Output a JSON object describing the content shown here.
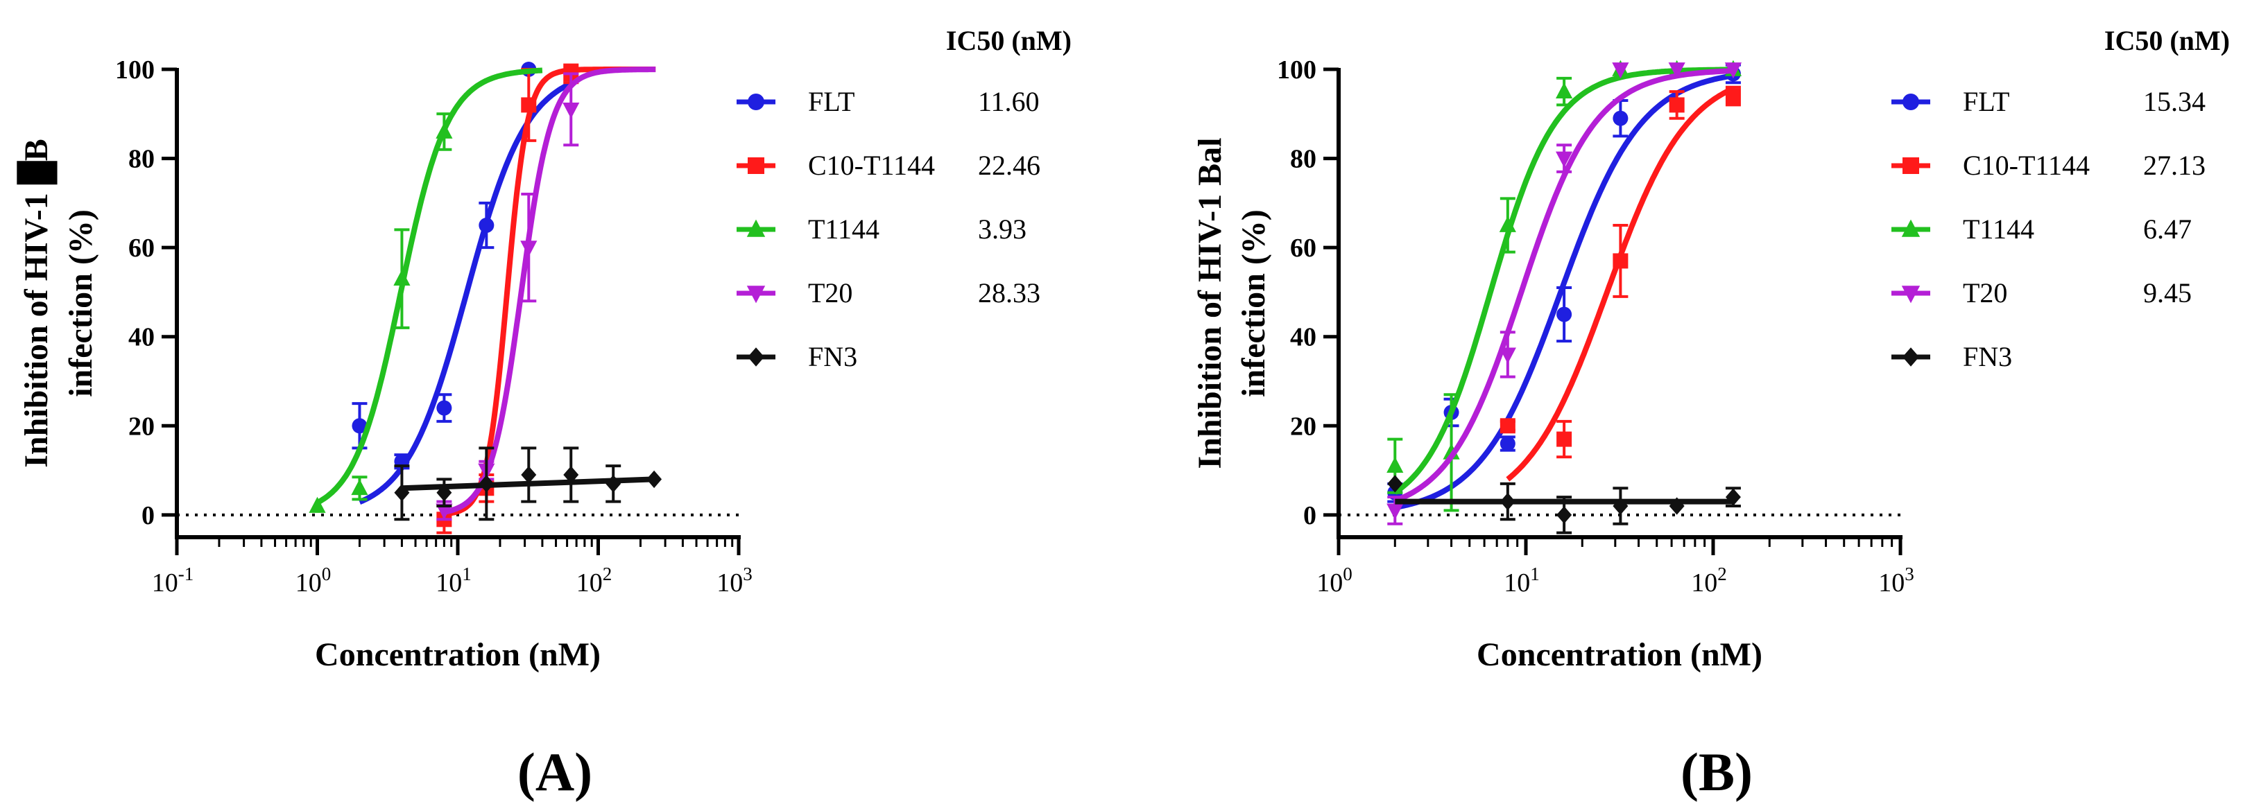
{
  "chart_data": [
    {
      "type": "scatter",
      "panel_label": "(A)",
      "xlabel": "Concentration (nM)",
      "ylabel_line1": "Inhibition of HIV-1 █B",
      "ylabel_line2": "infection (%)",
      "x_scale": "log",
      "xlim_exp": [
        -1,
        3
      ],
      "x_tick_labels": [
        {
          "base": "10",
          "exp": "-1"
        },
        {
          "base": "10",
          "exp": "0"
        },
        {
          "base": "10",
          "exp": "1"
        },
        {
          "base": "10",
          "exp": "2"
        },
        {
          "base": "10",
          "exp": "3"
        }
      ],
      "ylim": [
        -5,
        100
      ],
      "y_ticks": [
        0,
        20,
        40,
        60,
        80,
        100
      ],
      "y_tick_labels": [
        "0",
        "20",
        "40",
        "60",
        "80",
        "100"
      ],
      "legend_title": "IC50 (nM)",
      "series": [
        {
          "name": "FLT",
          "ic50_label": "11.60",
          "ic50": 11.6,
          "color": "#1f1fe0",
          "marker": "circle",
          "hill": 2.0,
          "fit_range": [
            2,
            64
          ],
          "points": [
            {
              "x": 2,
              "y": 20,
              "err": 5
            },
            {
              "x": 4,
              "y": 12,
              "err": 1.5
            },
            {
              "x": 8,
              "y": 24,
              "err": 3
            },
            {
              "x": 16,
              "y": 65,
              "err": 5
            },
            {
              "x": 32,
              "y": 100,
              "err": 0
            }
          ]
        },
        {
          "name": "C10-T1144",
          "ic50_label": "22.46",
          "ic50": 22.46,
          "color": "#ff1a1a",
          "marker": "square",
          "hill": 6.0,
          "fit_range": [
            8,
            256
          ],
          "points": [
            {
              "x": 8,
              "y": -1,
              "err": 3
            },
            {
              "x": 16,
              "y": 6,
              "err": 3
            },
            {
              "x": 32,
              "y": 92,
              "err": 8
            },
            {
              "x": 64,
              "y": 99,
              "err": 2
            }
          ]
        },
        {
          "name": "T1144",
          "ic50_label": "3.93",
          "ic50": 3.93,
          "color": "#22c01f",
          "marker": "triangle-up",
          "hill": 2.6,
          "fit_range": [
            1,
            40
          ],
          "points": [
            {
              "x": 1,
              "y": 2,
              "err": 0
            },
            {
              "x": 2,
              "y": 6,
              "err": 2.5
            },
            {
              "x": 4,
              "y": 53,
              "err": 11
            },
            {
              "x": 8,
              "y": 86,
              "err": 4
            }
          ]
        },
        {
          "name": "T20",
          "ic50_label": "28.33",
          "ic50": 28.33,
          "color": "#b41fd6",
          "marker": "triangle-down",
          "hill": 4.0,
          "fit_range": [
            8,
            256
          ],
          "points": [
            {
              "x": 8,
              "y": 1,
              "err": 2
            },
            {
              "x": 16,
              "y": 10,
              "err": 2
            },
            {
              "x": 32,
              "y": 60,
              "err": 12
            },
            {
              "x": 64,
              "y": 91,
              "err": 8
            }
          ]
        },
        {
          "name": "FN3",
          "ic50_label": "",
          "color": "#111111",
          "marker": "diamond",
          "line": "linear",
          "fit_range": [
            4,
            250
          ],
          "fit_y": [
            6,
            8
          ],
          "points": [
            {
              "x": 4,
              "y": 5,
              "err": 6
            },
            {
              "x": 8,
              "y": 5,
              "err": 3
            },
            {
              "x": 16,
              "y": 7,
              "err": 8
            },
            {
              "x": 32,
              "y": 9,
              "err": 6
            },
            {
              "x": 64,
              "y": 9,
              "err": 6
            },
            {
              "x": 128,
              "y": 7,
              "err": 4
            },
            {
              "x": 250,
              "y": 8,
              "err": 0
            }
          ]
        }
      ]
    },
    {
      "type": "scatter",
      "panel_label": "(B)",
      "xlabel": "Concentration (nM)",
      "ylabel_line1": "Inhibition of HIV-1 Bal",
      "ylabel_line2": "infection (%)",
      "x_scale": "log",
      "xlim_exp": [
        0,
        3
      ],
      "x_tick_labels": [
        {
          "base": "10",
          "exp": "0"
        },
        {
          "base": "10",
          "exp": "1"
        },
        {
          "base": "10",
          "exp": "2"
        },
        {
          "base": "10",
          "exp": "3"
        }
      ],
      "ylim": [
        -5,
        100
      ],
      "y_ticks": [
        0,
        20,
        40,
        60,
        80,
        100
      ],
      "y_tick_labels": [
        "0",
        "20",
        "40",
        "60",
        "80",
        "100"
      ],
      "legend_title": "IC50 (nM)",
      "series": [
        {
          "name": "FLT",
          "ic50_label": "15.34",
          "ic50": 15.34,
          "color": "#1f1fe0",
          "marker": "circle",
          "hill": 2.0,
          "fit_range": [
            2,
            128
          ],
          "points": [
            {
              "x": 2,
              "y": 5,
              "err": 2
            },
            {
              "x": 4,
              "y": 23,
              "err": 3
            },
            {
              "x": 8,
              "y": 16,
              "err": 1.5
            },
            {
              "x": 16,
              "y": 45,
              "err": 6
            },
            {
              "x": 32,
              "y": 89,
              "err": 4
            },
            {
              "x": 128,
              "y": 99,
              "err": 2
            }
          ]
        },
        {
          "name": "C10-T1144",
          "ic50_label": "27.13",
          "ic50": 27.13,
          "color": "#ff1a1a",
          "marker": "square",
          "hill": 2.0,
          "fit_range": [
            8,
            128
          ],
          "points": [
            {
              "x": 8,
              "y": 20,
              "err": 1
            },
            {
              "x": 16,
              "y": 17,
              "err": 4
            },
            {
              "x": 32,
              "y": 57,
              "err": 8
            },
            {
              "x": 64,
              "y": 92,
              "err": 3
            },
            {
              "x": 128,
              "y": 94,
              "err": 2
            }
          ]
        },
        {
          "name": "T1144",
          "ic50_label": "6.47",
          "ic50": 6.47,
          "color": "#22c01f",
          "marker": "triangle-up",
          "hill": 2.5,
          "fit_range": [
            2,
            128
          ],
          "points": [
            {
              "x": 2,
              "y": 11,
              "err": 6
            },
            {
              "x": 4,
              "y": 14,
              "err": 13
            },
            {
              "x": 8,
              "y": 65,
              "err": 6
            },
            {
              "x": 16,
              "y": 95,
              "err": 3
            },
            {
              "x": 32,
              "y": 100,
              "err": 0
            },
            {
              "x": 64,
              "y": 100,
              "err": 0
            },
            {
              "x": 128,
              "y": 100,
              "err": 0
            }
          ]
        },
        {
          "name": "T20",
          "ic50_label": "9.45",
          "ic50": 9.45,
          "color": "#b41fd6",
          "marker": "triangle-down",
          "hill": 2.2,
          "fit_range": [
            2,
            128
          ],
          "points": [
            {
              "x": 2,
              "y": 1,
              "err": 3
            },
            {
              "x": 8,
              "y": 36,
              "err": 5
            },
            {
              "x": 16,
              "y": 80,
              "err": 3
            },
            {
              "x": 32,
              "y": 100,
              "err": 0
            },
            {
              "x": 64,
              "y": 100,
              "err": 0
            },
            {
              "x": 128,
              "y": 100,
              "err": 0
            }
          ]
        },
        {
          "name": "FN3",
          "ic50_label": "",
          "color": "#111111",
          "marker": "diamond",
          "line": "linear",
          "fit_range": [
            2,
            128
          ],
          "fit_y": [
            3,
            3
          ],
          "points": [
            {
              "x": 2,
              "y": 7,
              "err": 0
            },
            {
              "x": 8,
              "y": 3,
              "err": 4
            },
            {
              "x": 16,
              "y": 0,
              "err": 4
            },
            {
              "x": 32,
              "y": 2,
              "err": 4
            },
            {
              "x": 64,
              "y": 2,
              "err": 0
            },
            {
              "x": 128,
              "y": 4,
              "err": 2
            }
          ]
        }
      ]
    }
  ]
}
